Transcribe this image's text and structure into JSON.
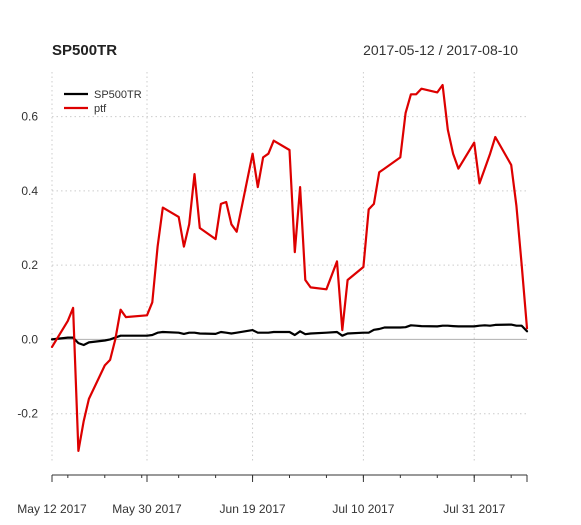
{
  "chart_data": {
    "type": "line",
    "title": "SP500TR",
    "date_range": "2017-05-12 / 2017-08-10",
    "xlabel": "",
    "ylabel": "",
    "ylim": [
      -0.33,
      0.72
    ],
    "y_ticks": [
      -0.2,
      0.0,
      0.2,
      0.4,
      0.6
    ],
    "y_tick_labels": [
      "-0.2",
      "0.0",
      "0.2",
      "0.4",
      "0.6"
    ],
    "x_ticks": [
      "2017-05-12",
      "2017-05-30",
      "2017-06-19",
      "2017-07-10",
      "2017-07-31"
    ],
    "x_tick_labels": [
      "May 12 2017",
      "May 30 2017",
      "Jun 19 2017",
      "Jul 10 2017",
      "Jul 31 2017"
    ],
    "grid": true,
    "legend_position": "top-left",
    "series": [
      {
        "name": "SP500TR",
        "color": "#000000",
        "points": [
          [
            "2017-05-12",
            0.0
          ],
          [
            "2017-05-15",
            0.005
          ],
          [
            "2017-05-16",
            0.005
          ],
          [
            "2017-05-17",
            -0.01
          ],
          [
            "2017-05-18",
            -0.015
          ],
          [
            "2017-05-19",
            -0.008
          ],
          [
            "2017-05-22",
            -0.003
          ],
          [
            "2017-05-23",
            0.0
          ],
          [
            "2017-05-24",
            0.005
          ],
          [
            "2017-05-25",
            0.01
          ],
          [
            "2017-05-26",
            0.01
          ],
          [
            "2017-05-30",
            0.01
          ],
          [
            "2017-05-31",
            0.012
          ],
          [
            "2017-06-01",
            0.018
          ],
          [
            "2017-06-02",
            0.02
          ],
          [
            "2017-06-05",
            0.018
          ],
          [
            "2017-06-06",
            0.015
          ],
          [
            "2017-06-07",
            0.018
          ],
          [
            "2017-06-08",
            0.018
          ],
          [
            "2017-06-09",
            0.016
          ],
          [
            "2017-06-12",
            0.015
          ],
          [
            "2017-06-13",
            0.02
          ],
          [
            "2017-06-14",
            0.018
          ],
          [
            "2017-06-15",
            0.016
          ],
          [
            "2017-06-16",
            0.018
          ],
          [
            "2017-06-19",
            0.025
          ],
          [
            "2017-06-20",
            0.018
          ],
          [
            "2017-06-21",
            0.018
          ],
          [
            "2017-06-22",
            0.018
          ],
          [
            "2017-06-23",
            0.02
          ],
          [
            "2017-06-26",
            0.02
          ],
          [
            "2017-06-27",
            0.012
          ],
          [
            "2017-06-28",
            0.022
          ],
          [
            "2017-06-29",
            0.014
          ],
          [
            "2017-06-30",
            0.016
          ],
          [
            "2017-07-03",
            0.018
          ],
          [
            "2017-07-05",
            0.02
          ],
          [
            "2017-07-06",
            0.01
          ],
          [
            "2017-07-07",
            0.016
          ],
          [
            "2017-07-10",
            0.018
          ],
          [
            "2017-07-11",
            0.018
          ],
          [
            "2017-07-12",
            0.026
          ],
          [
            "2017-07-13",
            0.028
          ],
          [
            "2017-07-14",
            0.032
          ],
          [
            "2017-07-17",
            0.032
          ],
          [
            "2017-07-18",
            0.033
          ],
          [
            "2017-07-19",
            0.038
          ],
          [
            "2017-07-20",
            0.037
          ],
          [
            "2017-07-21",
            0.036
          ],
          [
            "2017-07-24",
            0.035
          ],
          [
            "2017-07-25",
            0.037
          ],
          [
            "2017-07-26",
            0.037
          ],
          [
            "2017-07-27",
            0.036
          ],
          [
            "2017-07-28",
            0.035
          ],
          [
            "2017-07-31",
            0.035
          ],
          [
            "2017-08-01",
            0.037
          ],
          [
            "2017-08-02",
            0.038
          ],
          [
            "2017-08-03",
            0.037
          ],
          [
            "2017-08-04",
            0.039
          ],
          [
            "2017-08-07",
            0.04
          ],
          [
            "2017-08-08",
            0.037
          ],
          [
            "2017-08-09",
            0.037
          ],
          [
            "2017-08-10",
            0.022
          ]
        ]
      },
      {
        "name": "ptf",
        "color": "#dd0000",
        "points": [
          [
            "2017-05-12",
            -0.02
          ],
          [
            "2017-05-15",
            0.05
          ],
          [
            "2017-05-16",
            0.085
          ],
          [
            "2017-05-17",
            -0.3
          ],
          [
            "2017-05-18",
            -0.22
          ],
          [
            "2017-05-19",
            -0.16
          ],
          [
            "2017-05-22",
            -0.07
          ],
          [
            "2017-05-23",
            -0.055
          ],
          [
            "2017-05-24",
            0.0
          ],
          [
            "2017-05-25",
            0.08
          ],
          [
            "2017-05-26",
            0.06
          ],
          [
            "2017-05-30",
            0.065
          ],
          [
            "2017-05-31",
            0.1
          ],
          [
            "2017-06-01",
            0.25
          ],
          [
            "2017-06-02",
            0.355
          ],
          [
            "2017-06-05",
            0.33
          ],
          [
            "2017-06-06",
            0.25
          ],
          [
            "2017-06-07",
            0.31
          ],
          [
            "2017-06-08",
            0.445
          ],
          [
            "2017-06-09",
            0.3
          ],
          [
            "2017-06-12",
            0.27
          ],
          [
            "2017-06-13",
            0.365
          ],
          [
            "2017-06-14",
            0.37
          ],
          [
            "2017-06-15",
            0.31
          ],
          [
            "2017-06-16",
            0.29
          ],
          [
            "2017-06-19",
            0.5
          ],
          [
            "2017-06-20",
            0.41
          ],
          [
            "2017-06-21",
            0.49
          ],
          [
            "2017-06-22",
            0.5
          ],
          [
            "2017-06-23",
            0.535
          ],
          [
            "2017-06-26",
            0.51
          ],
          [
            "2017-06-27",
            0.235
          ],
          [
            "2017-06-28",
            0.41
          ],
          [
            "2017-06-29",
            0.16
          ],
          [
            "2017-06-30",
            0.14
          ],
          [
            "2017-07-03",
            0.135
          ],
          [
            "2017-07-05",
            0.21
          ],
          [
            "2017-07-06",
            0.025
          ],
          [
            "2017-07-07",
            0.16
          ],
          [
            "2017-07-10",
            0.195
          ],
          [
            "2017-07-11",
            0.35
          ],
          [
            "2017-07-12",
            0.365
          ],
          [
            "2017-07-13",
            0.45
          ],
          [
            "2017-07-14",
            0.46
          ],
          [
            "2017-07-17",
            0.49
          ],
          [
            "2017-07-18",
            0.61
          ],
          [
            "2017-07-19",
            0.66
          ],
          [
            "2017-07-20",
            0.66
          ],
          [
            "2017-07-21",
            0.675
          ],
          [
            "2017-07-24",
            0.665
          ],
          [
            "2017-07-25",
            0.685
          ],
          [
            "2017-07-26",
            0.565
          ],
          [
            "2017-07-27",
            0.5
          ],
          [
            "2017-07-28",
            0.46
          ],
          [
            "2017-07-31",
            0.53
          ],
          [
            "2017-08-01",
            0.42
          ],
          [
            "2017-08-02",
            0.46
          ],
          [
            "2017-08-03",
            0.5
          ],
          [
            "2017-08-04",
            0.545
          ],
          [
            "2017-08-07",
            0.47
          ],
          [
            "2017-08-08",
            0.36
          ],
          [
            "2017-08-09",
            0.2
          ],
          [
            "2017-08-10",
            0.03
          ]
        ]
      }
    ]
  }
}
